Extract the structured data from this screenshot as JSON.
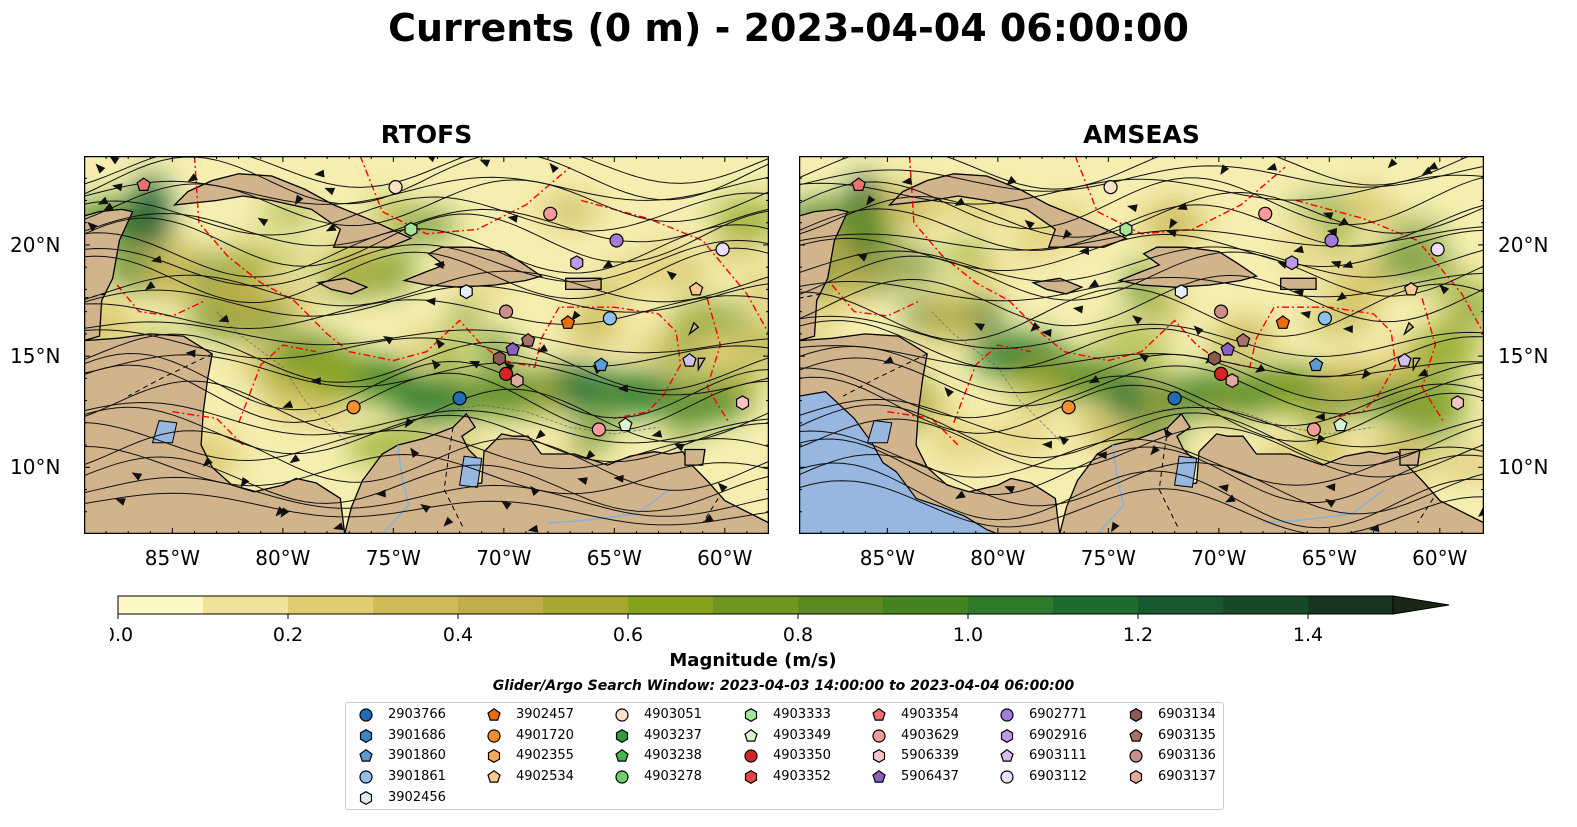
{
  "title": "Currents (0 m) - 2023-04-04 06:00:00",
  "panels": [
    {
      "title": "RTOFS"
    },
    {
      "title": "AMSEAS"
    }
  ],
  "map": {
    "lon_min": -89,
    "lon_max": -58,
    "lat_min": 7,
    "lat_max": 24,
    "x_ticks": [
      "85°W",
      "80°W",
      "75°W",
      "70°W",
      "65°W",
      "60°W"
    ],
    "y_ticks": [
      "20°N",
      "15°N",
      "10°N"
    ],
    "land_color": "#d2b48c",
    "ocean_color": "#f5eeb0",
    "pacific_color": "#97b6e0",
    "eez_line_color": "#ff0000"
  },
  "colorbar": {
    "label": "Magnitude (m/s)",
    "min": 0.0,
    "max": 1.5,
    "step": 0.1,
    "extend": "max",
    "ticks": [
      "0.0",
      "0.2",
      "0.4",
      "0.6",
      "0.8",
      "1.0",
      "1.2",
      "1.4"
    ],
    "colors": [
      "#fdf8c4",
      "#f0e29a",
      "#e0cc72",
      "#d2bb56",
      "#c2ae48",
      "#a4a82e",
      "#87a11c",
      "#6e9620",
      "#5a8a20",
      "#438420",
      "#2e7a2a",
      "#1e6b30",
      "#17582e",
      "#174a28",
      "#183520",
      "#1b2715"
    ]
  },
  "legend": {
    "title": "Glider/Argo Search Window: 2023-04-03 14:00:00 to 2023-04-04 06:00:00",
    "columns": [
      [
        {
          "id": "2903766",
          "marker": "circle",
          "color": "#1f6eb5"
        },
        {
          "id": "3901686",
          "marker": "hexagon",
          "color": "#3a85c4"
        },
        {
          "id": "3901860",
          "marker": "pentagon",
          "color": "#5b9bd5"
        },
        {
          "id": "3901861",
          "marker": "circle",
          "color": "#8fc1ea"
        },
        {
          "id": "3902456",
          "marker": "hexagon",
          "color": "#e3eefa"
        }
      ],
      [
        {
          "id": "3902457",
          "marker": "pentagon",
          "color": "#e86e0c"
        },
        {
          "id": "4901720",
          "marker": "circle",
          "color": "#f58f2e"
        },
        {
          "id": "4902355",
          "marker": "hexagon",
          "color": "#f8aa5a"
        },
        {
          "id": "4902534",
          "marker": "pentagon",
          "color": "#fcca90"
        }
      ],
      [
        {
          "id": "4903051",
          "marker": "circle",
          "color": "#fde1c4"
        },
        {
          "id": "4903237",
          "marker": "hexagon",
          "color": "#2e9e3a"
        },
        {
          "id": "4903238",
          "marker": "pentagon",
          "color": "#45b649"
        },
        {
          "id": "4903278",
          "marker": "circle",
          "color": "#6fce6a"
        }
      ],
      [
        {
          "id": "4903333",
          "marker": "hexagon",
          "color": "#a5e49a"
        },
        {
          "id": "4903349",
          "marker": "pentagon",
          "color": "#d5f5cf"
        },
        {
          "id": "4903350",
          "marker": "circle",
          "color": "#d42424"
        },
        {
          "id": "4903352",
          "marker": "hexagon",
          "color": "#e84545"
        }
      ],
      [
        {
          "id": "4903354",
          "marker": "pentagon",
          "color": "#f07070"
        },
        {
          "id": "4903629",
          "marker": "circle",
          "color": "#f59a9a"
        },
        {
          "id": "5906339",
          "marker": "hexagon",
          "color": "#fbc3c3"
        },
        {
          "id": "5906437",
          "marker": "pentagon",
          "color": "#8a5fc2"
        }
      ],
      [
        {
          "id": "6902771",
          "marker": "circle",
          "color": "#a37ad6"
        },
        {
          "id": "6902916",
          "marker": "hexagon",
          "color": "#bd9ae3"
        },
        {
          "id": "6903111",
          "marker": "pentagon",
          "color": "#d5bff0"
        },
        {
          "id": "6903112",
          "marker": "circle",
          "color": "#ecdff9"
        }
      ],
      [
        {
          "id": "6903134",
          "marker": "hexagon",
          "color": "#8b5a50"
        },
        {
          "id": "6903135",
          "marker": "pentagon",
          "color": "#a77269"
        },
        {
          "id": "6903136",
          "marker": "circle",
          "color": "#c89088"
        },
        {
          "id": "6903137",
          "marker": "hexagon",
          "color": "#e3aaa0"
        }
      ]
    ]
  },
  "floats_on_map": [
    {
      "id": "4903354",
      "lon": -86.3,
      "lat": 22.7
    },
    {
      "id": "4903051",
      "lon": -74.9,
      "lat": 22.6
    },
    {
      "id": "4903333",
      "lon": -74.2,
      "lat": 20.7
    },
    {
      "id": "4903629",
      "lon": -67.9,
      "lat": 21.4
    },
    {
      "id": "6902771",
      "lon": -64.9,
      "lat": 20.2
    },
    {
      "id": "6902916",
      "lon": -66.7,
      "lat": 19.2
    },
    {
      "id": "6903112",
      "lon": -60.1,
      "lat": 19.8
    },
    {
      "id": "3902456",
      "lon": -71.7,
      "lat": 17.9
    },
    {
      "id": "4902534",
      "lon": -61.3,
      "lat": 18.0
    },
    {
      "id": "6903136",
      "lon": -69.9,
      "lat": 17.0
    },
    {
      "id": "3902457",
      "lon": -67.1,
      "lat": 16.5
    },
    {
      "id": "3901861",
      "lon": -65.2,
      "lat": 16.7
    },
    {
      "id": "5906437",
      "lon": -69.6,
      "lat": 15.3
    },
    {
      "id": "6903135",
      "lon": -68.9,
      "lat": 15.7
    },
    {
      "id": "6903134",
      "lon": -70.2,
      "lat": 14.9
    },
    {
      "id": "3901860",
      "lon": -65.6,
      "lat": 14.6
    },
    {
      "id": "6903111",
      "lon": -61.6,
      "lat": 14.8
    },
    {
      "id": "4903350",
      "lon": -69.9,
      "lat": 14.2
    },
    {
      "id": "6903137",
      "lon": -69.4,
      "lat": 13.9
    },
    {
      "id": "2903766",
      "lon": -72.0,
      "lat": 13.1
    },
    {
      "id": "4901720",
      "lon": -76.8,
      "lat": 12.7
    },
    {
      "id": "5906339",
      "lon": -59.2,
      "lat": 12.9
    },
    {
      "id": "4903349",
      "lon": -64.5,
      "lat": 11.9
    },
    {
      "id": "4903629",
      "lon": -65.7,
      "lat": 11.7
    }
  ]
}
